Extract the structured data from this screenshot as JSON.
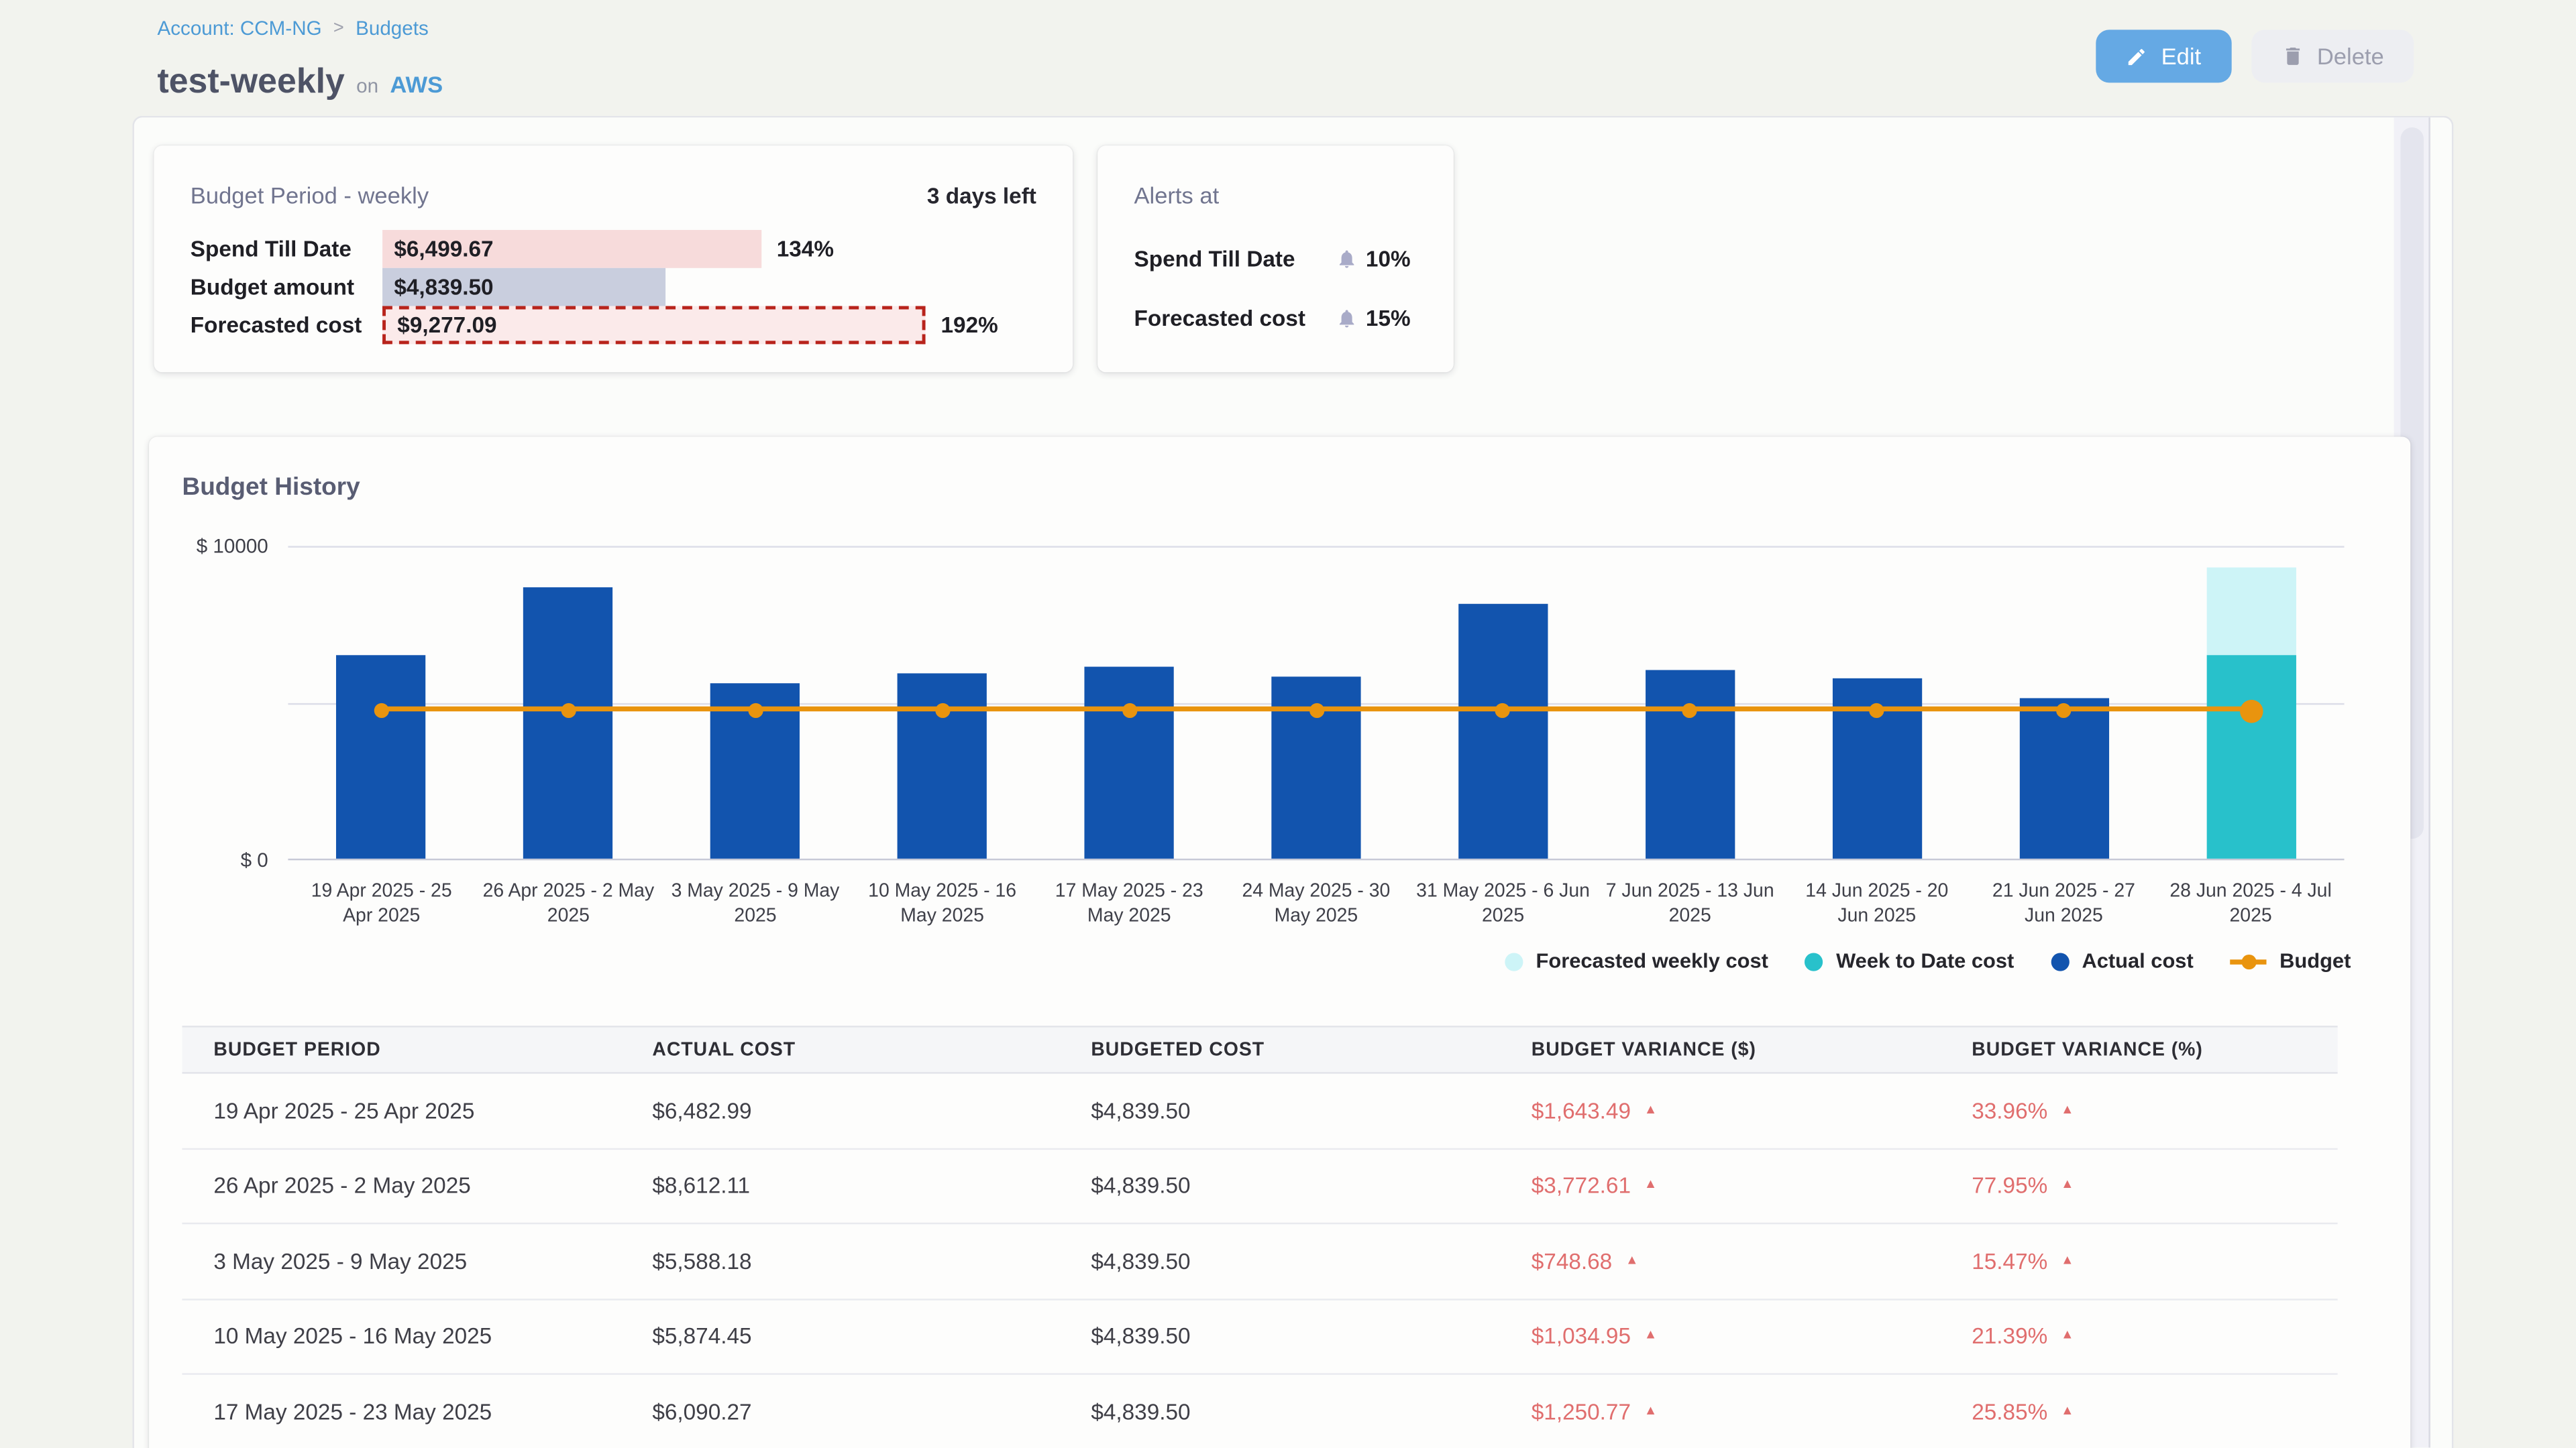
{
  "breadcrumb": {
    "account": "Account: CCM-NG",
    "separator": ">",
    "page": "Budgets"
  },
  "header": {
    "title": "test-weekly",
    "on_label": "on",
    "platform": "AWS",
    "edit_label": "Edit",
    "delete_label": "Delete"
  },
  "icons": {
    "edit": "pencil-icon",
    "delete": "trash-icon",
    "alert": "bell-icon",
    "variance_up": "▲"
  },
  "colors": {
    "page_bg": "#f2f3ee",
    "panel_bg": "#fbfcfa",
    "card_bg": "#fdfdfc",
    "link_blue": "#4c9ad5",
    "primary_button": "#65a9e4",
    "actual_cost": "#1254ae",
    "week_to_date": "#28c1cb",
    "forecasted_weekly": "#cdf4f7",
    "budget_line": "#e9940e",
    "variance_red": "#e06e6e",
    "spend_bar": "#f7dbdb",
    "budget_bar": "#c9cede",
    "forecast_bar_fill": "#fbeaea",
    "forecast_bar_border": "#b8241c"
  },
  "budget_period_card": {
    "title": "Budget Period - weekly",
    "days_left": "3 days left",
    "rows": [
      {
        "label": "Spend Till Date",
        "value": "$6,499.67",
        "pct_label": "134%",
        "pct_value": 134,
        "style": "spend"
      },
      {
        "label": "Budget amount",
        "value": "$4,839.50",
        "pct_label": "",
        "pct_value": 100,
        "style": "budget"
      },
      {
        "label": "Forecasted cost",
        "value": "$9,277.09",
        "pct_label": "192%",
        "pct_value": 192,
        "style": "forecast"
      }
    ]
  },
  "alerts_card": {
    "title": "Alerts at",
    "rows": [
      {
        "label": "Spend Till Date",
        "value": "10%"
      },
      {
        "label": "Forecasted cost",
        "value": "15%"
      }
    ]
  },
  "chart_data": {
    "type": "bar",
    "title": "Budget History",
    "ylabel_top": "$ 10000",
    "ylabel_bottom": "$ 0",
    "ylim": [
      0,
      10000
    ],
    "grid": "horizontal",
    "legend_position": "bottom-right",
    "categories": [
      "19 Apr 2025 - 25 Apr 2025",
      "26 Apr 2025 - 2 May 2025",
      "3 May 2025 - 9 May 2025",
      "10 May 2025 - 16 May 2025",
      "17 May 2025 - 23 May 2025",
      "24 May 2025 - 30 May 2025",
      "31 May 2025 - 6 Jun 2025",
      "7 Jun 2025 - 13 Jun 2025",
      "14 Jun 2025 - 20 Jun 2025",
      "21 Jun 2025 - 27 Jun 2025",
      "28 Jun 2025 - 4 Jul 2025"
    ],
    "series": [
      {
        "name": "Actual cost",
        "type": "bar",
        "color": "#1254ae",
        "values": [
          6482.99,
          8612.11,
          5588.18,
          5874.45,
          6090.27,
          5770,
          8100,
          5980,
          5745,
          5080,
          null
        ]
      },
      {
        "name": "Week to Date cost",
        "type": "bar",
        "color": "#28c1cb",
        "values": [
          null,
          null,
          null,
          null,
          null,
          null,
          null,
          null,
          null,
          null,
          6499.67
        ]
      },
      {
        "name": "Forecasted weekly cost",
        "type": "bar",
        "color": "#cdf4f7",
        "values": [
          null,
          null,
          null,
          null,
          null,
          null,
          null,
          null,
          null,
          null,
          9277.09
        ]
      },
      {
        "name": "Budget",
        "type": "line",
        "color": "#e9940e",
        "values": [
          4839.5,
          4839.5,
          4839.5,
          4839.5,
          4839.5,
          4839.5,
          4839.5,
          4839.5,
          4839.5,
          4839.5,
          4839.5
        ]
      }
    ],
    "legend": [
      "Forecasted weekly cost",
      "Week to Date cost",
      "Actual cost",
      "Budget"
    ]
  },
  "table": {
    "headers": [
      "BUDGET PERIOD",
      "ACTUAL COST",
      "BUDGETED COST",
      "BUDGET VARIANCE ($)",
      "BUDGET VARIANCE (%)"
    ],
    "rows": [
      {
        "period": "19 Apr 2025 - 25 Apr 2025",
        "actual": "$6,482.99",
        "budgeted": "$4,839.50",
        "variance_usd": "$1,643.49",
        "variance_pct": "33.96%"
      },
      {
        "period": "26 Apr 2025 - 2 May 2025",
        "actual": "$8,612.11",
        "budgeted": "$4,839.50",
        "variance_usd": "$3,772.61",
        "variance_pct": "77.95%"
      },
      {
        "period": "3 May 2025 - 9 May 2025",
        "actual": "$5,588.18",
        "budgeted": "$4,839.50",
        "variance_usd": "$748.68",
        "variance_pct": "15.47%"
      },
      {
        "period": "10 May 2025 - 16 May 2025",
        "actual": "$5,874.45",
        "budgeted": "$4,839.50",
        "variance_usd": "$1,034.95",
        "variance_pct": "21.39%"
      },
      {
        "period": "17 May 2025 - 23 May 2025",
        "actual": "$6,090.27",
        "budgeted": "$4,839.50",
        "variance_usd": "$1,250.77",
        "variance_pct": "25.85%"
      }
    ]
  }
}
